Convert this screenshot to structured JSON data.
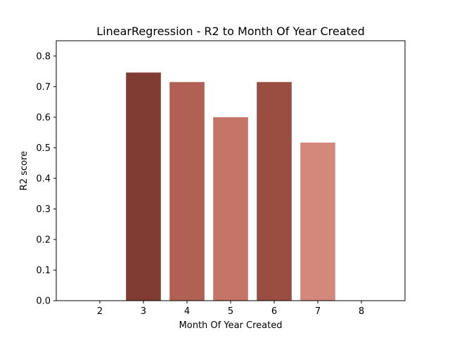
{
  "chart_data": {
    "type": "bar",
    "title": "LinearRegression - R2 to Month Of Year Created",
    "xlabel": "Month Of Year Created",
    "ylabel": "R2 score",
    "categories": [
      3,
      4,
      5,
      6,
      7
    ],
    "values": [
      0.746,
      0.715,
      0.6,
      0.715,
      0.517
    ],
    "bar_colors": [
      "#803c33",
      "#b06154",
      "#c57568",
      "#9a4e41",
      "#d4887b"
    ],
    "xticks": [
      2,
      3,
      4,
      5,
      6,
      7,
      8
    ],
    "yticks": [
      "0.0",
      "0.1",
      "0.2",
      "0.3",
      "0.4",
      "0.5",
      "0.6",
      "0.7",
      "0.8"
    ],
    "xlim": [
      1,
      9
    ],
    "ylim": [
      0,
      0.85
    ],
    "grid": false,
    "legend": false
  }
}
